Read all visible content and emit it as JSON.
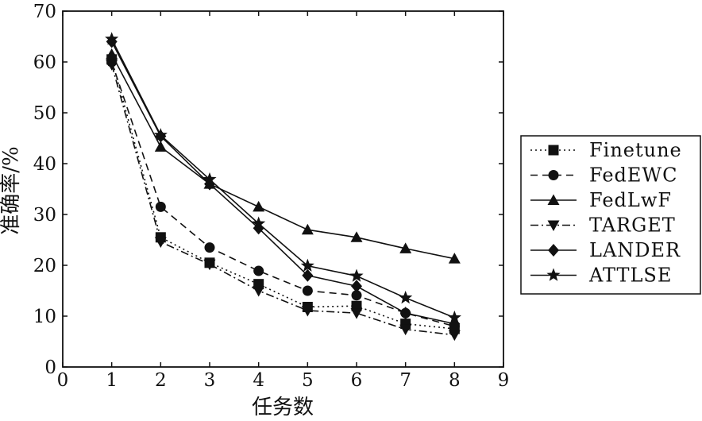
{
  "chart_data": {
    "type": "line",
    "xlabel": "任务数",
    "ylabel": "准确率/%",
    "xlim": [
      0,
      9
    ],
    "ylim": [
      0,
      70
    ],
    "xticks": [
      0,
      1,
      2,
      3,
      4,
      5,
      6,
      7,
      8,
      9
    ],
    "yticks": [
      0,
      10,
      20,
      30,
      40,
      50,
      60,
      70
    ],
    "x": [
      1,
      2,
      3,
      4,
      5,
      6,
      7,
      8
    ],
    "legend_position": "right",
    "grid": false,
    "series": [
      {
        "name": "Finetune",
        "marker": "square",
        "dash": "dotted",
        "values": [
          60.5,
          25.5,
          20.5,
          16.3,
          11.8,
          12.0,
          8.5,
          7.5
        ]
      },
      {
        "name": "FedEWC",
        "marker": "circle",
        "dash": "dashed",
        "values": [
          60.0,
          31.5,
          23.5,
          18.9,
          15.0,
          14.1,
          10.6,
          8.0
        ]
      },
      {
        "name": "FedLwF",
        "marker": "triangle-up",
        "dash": "solid",
        "values": [
          61.5,
          43.3,
          36.0,
          31.5,
          27.0,
          25.5,
          23.3,
          21.3
        ]
      },
      {
        "name": "TARGET",
        "marker": "triangle-down",
        "dash": "dashdot",
        "values": [
          59.5,
          24.6,
          20.2,
          15.0,
          11.1,
          10.6,
          7.4,
          6.3
        ]
      },
      {
        "name": "LANDER",
        "marker": "diamond",
        "dash": "solid",
        "values": [
          64.0,
          45.4,
          36.0,
          27.3,
          18.0,
          15.9,
          10.6,
          8.5
        ]
      },
      {
        "name": "ATTLSE",
        "marker": "star",
        "dash": "solid",
        "values": [
          64.5,
          45.6,
          36.9,
          28.2,
          19.9,
          17.9,
          13.6,
          9.7
        ]
      }
    ]
  }
}
